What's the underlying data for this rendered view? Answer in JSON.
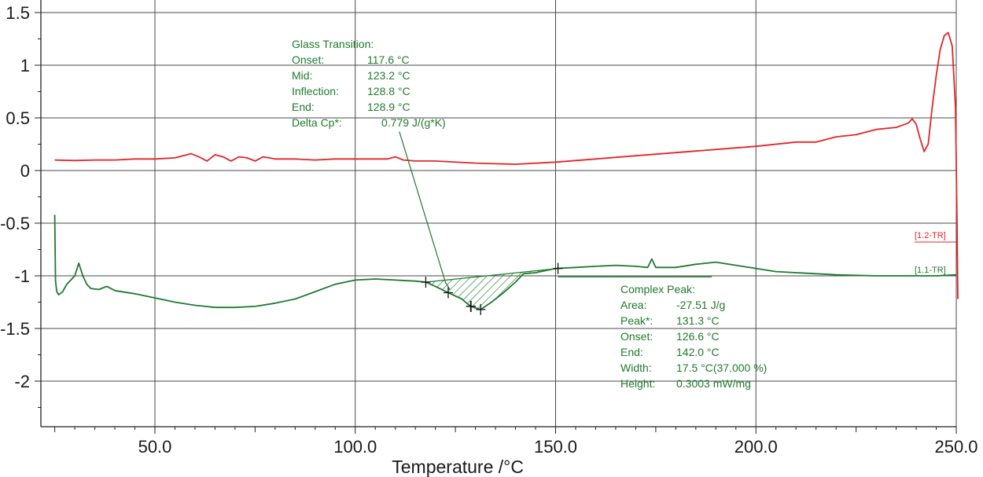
{
  "chart_data": {
    "type": "line",
    "xlabel": "Temperature /°C",
    "ylabel": "",
    "xlim": [
      22,
      251
    ],
    "ylim": [
      -2.35,
      1.55
    ],
    "grid": true,
    "x_ticks": [
      50,
      100,
      150,
      200,
      250
    ],
    "x_tick_labels": [
      "50.0",
      "100.0",
      "150.0",
      "200.0",
      "250.0"
    ],
    "y_ticks": [
      1.5,
      1,
      0.5,
      0,
      -0.5,
      -1,
      -1.5,
      -2
    ],
    "y_tick_labels": [
      "1.5",
      "1",
      "0.5",
      "0",
      "-0.5",
      "-1",
      "-1.5",
      "-2"
    ],
    "series": [
      {
        "name": "[1.2-TR]",
        "color": "#e32626",
        "points": [
          [
            25,
            0.1
          ],
          [
            30,
            0.095
          ],
          [
            35,
            0.1
          ],
          [
            40,
            0.1
          ],
          [
            45,
            0.11
          ],
          [
            50,
            0.11
          ],
          [
            55,
            0.12
          ],
          [
            57,
            0.14
          ],
          [
            59,
            0.16
          ],
          [
            61,
            0.13
          ],
          [
            63,
            0.09
          ],
          [
            65,
            0.15
          ],
          [
            67,
            0.13
          ],
          [
            69,
            0.09
          ],
          [
            71,
            0.13
          ],
          [
            73,
            0.12
          ],
          [
            75,
            0.09
          ],
          [
            77,
            0.13
          ],
          [
            80,
            0.11
          ],
          [
            85,
            0.11
          ],
          [
            90,
            0.1
          ],
          [
            95,
            0.11
          ],
          [
            100,
            0.11
          ],
          [
            105,
            0.11
          ],
          [
            108,
            0.11
          ],
          [
            110,
            0.13
          ],
          [
            112,
            0.1
          ],
          [
            115,
            0.09
          ],
          [
            120,
            0.09
          ],
          [
            130,
            0.07
          ],
          [
            140,
            0.06
          ],
          [
            150,
            0.08
          ],
          [
            160,
            0.11
          ],
          [
            170,
            0.14
          ],
          [
            180,
            0.17
          ],
          [
            190,
            0.2
          ],
          [
            200,
            0.23
          ],
          [
            210,
            0.27
          ],
          [
            215,
            0.27
          ],
          [
            220,
            0.32
          ],
          [
            225,
            0.34
          ],
          [
            230,
            0.39
          ],
          [
            235,
            0.41
          ],
          [
            238,
            0.45
          ],
          [
            239,
            0.49
          ],
          [
            240,
            0.44
          ],
          [
            241,
            0.3
          ],
          [
            242,
            0.18
          ],
          [
            243,
            0.25
          ],
          [
            244,
            0.6
          ],
          [
            245,
            0.9
          ],
          [
            246,
            1.15
          ],
          [
            247,
            1.28
          ],
          [
            248,
            1.31
          ],
          [
            249,
            1.18
          ],
          [
            249.8,
            0.6
          ],
          [
            250.2,
            -0.5
          ],
          [
            250.4,
            -1.22
          ]
        ]
      },
      {
        "name": "[1.1-TR]",
        "color": "#1f7a2e",
        "points": [
          [
            25,
            -0.42
          ],
          [
            25.2,
            -1.05
          ],
          [
            25.5,
            -1.15
          ],
          [
            26,
            -1.18
          ],
          [
            27,
            -1.15
          ],
          [
            28,
            -1.08
          ],
          [
            30,
            -1.0
          ],
          [
            31,
            -0.88
          ],
          [
            32,
            -1.0
          ],
          [
            33,
            -1.08
          ],
          [
            34,
            -1.12
          ],
          [
            36,
            -1.13
          ],
          [
            38,
            -1.1
          ],
          [
            40,
            -1.14
          ],
          [
            45,
            -1.17
          ],
          [
            50,
            -1.21
          ],
          [
            55,
            -1.25
          ],
          [
            60,
            -1.28
          ],
          [
            65,
            -1.3
          ],
          [
            70,
            -1.3
          ],
          [
            75,
            -1.29
          ],
          [
            80,
            -1.26
          ],
          [
            85,
            -1.22
          ],
          [
            90,
            -1.15
          ],
          [
            95,
            -1.08
          ],
          [
            100,
            -1.04
          ],
          [
            105,
            -1.03
          ],
          [
            110,
            -1.04
          ],
          [
            115,
            -1.05
          ],
          [
            117.6,
            -1.06
          ],
          [
            120,
            -1.1
          ],
          [
            123.2,
            -1.16
          ],
          [
            126.6,
            -1.22
          ],
          [
            128.8,
            -1.29
          ],
          [
            131.3,
            -1.32
          ],
          [
            134,
            -1.25
          ],
          [
            137,
            -1.16
          ],
          [
            140,
            -1.06
          ],
          [
            142,
            -0.98
          ],
          [
            145,
            -0.97
          ],
          [
            150,
            -0.93
          ],
          [
            155,
            -0.92
          ],
          [
            160,
            -0.91
          ],
          [
            165,
            -0.9
          ],
          [
            170,
            -0.91
          ],
          [
            173,
            -0.92
          ],
          [
            174,
            -0.84
          ],
          [
            175,
            -0.92
          ],
          [
            180,
            -0.92
          ],
          [
            185,
            -0.89
          ],
          [
            190,
            -0.87
          ],
          [
            195,
            -0.9
          ],
          [
            200,
            -0.93
          ],
          [
            205,
            -0.96
          ],
          [
            210,
            -0.97
          ],
          [
            215,
            -0.98
          ],
          [
            220,
            -0.99
          ],
          [
            230,
            -1.0
          ],
          [
            240,
            -1.0
          ],
          [
            245,
            -1.0
          ],
          [
            250,
            -0.99
          ]
        ]
      }
    ],
    "annotations": {
      "glass_transition": {
        "title": "Glass Transition:",
        "rows": [
          {
            "label": "Onset:",
            "value": "117.6 °C"
          },
          {
            "label": "Mid:",
            "value": "123.2 °C"
          },
          {
            "label": "Inflection:",
            "value": "128.8 °C"
          },
          {
            "label": "End:",
            "value": "128.9 °C"
          },
          {
            "label": "Delta Cp*:",
            "value": "0.779 J/(g*K)"
          }
        ],
        "leader_from": [
          111,
          0.37
        ],
        "leader_to": [
          122.5,
          -1.06
        ],
        "markers": [
          [
            117.6,
            -1.06
          ],
          [
            123.2,
            -1.16
          ],
          [
            128.8,
            -1.29
          ],
          [
            128.9,
            -1.29
          ]
        ]
      },
      "complex_peak": {
        "title": "Complex Peak:",
        "rows": [
          {
            "label": "Area:",
            "value": "-27.51 J/g"
          },
          {
            "label": "Peak*:",
            "value": "131.3 °C"
          },
          {
            "label": "Onset:",
            "value": "126.6 °C"
          },
          {
            "label": "End:",
            "value": "142.0 °C"
          },
          {
            "label": "Width:",
            "value": "17.5 °C(37.000 %)"
          },
          {
            "label": "Height:",
            "value": "0.3003 mW/mg"
          }
        ],
        "baseline": [
          [
            117.6,
            -1.06
          ],
          [
            150.6,
            -0.93
          ]
        ],
        "markers": [
          [
            131.3,
            -1.32
          ],
          [
            150.6,
            -0.93
          ]
        ],
        "baseline_extension": [
          [
            150.6,
            -1.01
          ],
          [
            189.0,
            -1.01
          ]
        ]
      }
    }
  }
}
